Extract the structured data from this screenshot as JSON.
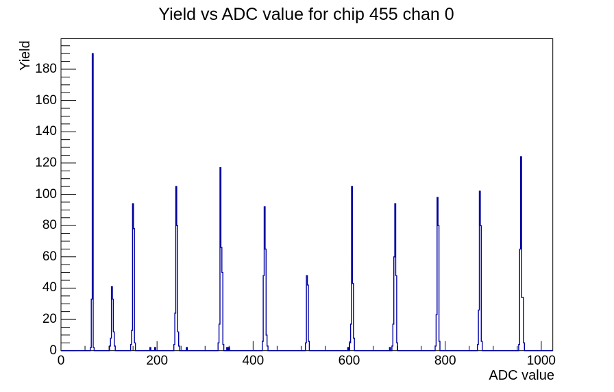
{
  "page": {
    "background": "#ffffff"
  },
  "chart_data": {
    "type": "bar",
    "subtype": "histogram-step-outline",
    "title": "Yield vs ADC value for chip 455 chan 0",
    "xlabel": "ADC value",
    "ylabel": "Yield",
    "xlim": [
      0,
      1024
    ],
    "ylim": [
      0,
      199.5
    ],
    "x_major_ticks": [
      0,
      200,
      400,
      600,
      800,
      1000
    ],
    "x_minor_tick_step": 50,
    "y_major_ticks": [
      0,
      20,
      40,
      60,
      80,
      100,
      120,
      140,
      160,
      180
    ],
    "y_minor_tick_step": 5,
    "grid": false,
    "legend": false,
    "line_color": "#0000a0",
    "axis_color": "#000000",
    "bin_width": 2,
    "bins": [
      [
        61,
        2
      ],
      [
        63,
        33
      ],
      [
        65,
        190
      ],
      [
        67,
        2
      ],
      [
        101,
        3
      ],
      [
        103,
        8
      ],
      [
        105,
        41
      ],
      [
        107,
        33
      ],
      [
        109,
        12
      ],
      [
        111,
        3
      ],
      [
        145,
        4
      ],
      [
        147,
        13
      ],
      [
        149,
        94
      ],
      [
        151,
        78
      ],
      [
        153,
        5
      ],
      [
        185,
        2
      ],
      [
        195,
        2
      ],
      [
        235,
        4
      ],
      [
        237,
        24
      ],
      [
        239,
        105
      ],
      [
        241,
        80
      ],
      [
        243,
        12
      ],
      [
        245,
        3
      ],
      [
        261,
        2
      ],
      [
        327,
        5
      ],
      [
        329,
        17
      ],
      [
        331,
        117
      ],
      [
        333,
        66
      ],
      [
        335,
        50
      ],
      [
        337,
        4
      ],
      [
        345,
        2
      ],
      [
        349,
        2
      ],
      [
        419,
        6
      ],
      [
        421,
        48
      ],
      [
        423,
        92
      ],
      [
        425,
        65
      ],
      [
        427,
        10
      ],
      [
        429,
        3
      ],
      [
        509,
        5
      ],
      [
        511,
        48
      ],
      [
        513,
        42
      ],
      [
        515,
        6
      ],
      [
        597,
        2
      ],
      [
        601,
        5
      ],
      [
        603,
        17
      ],
      [
        605,
        105
      ],
      [
        607,
        43
      ],
      [
        609,
        8
      ],
      [
        684,
        2
      ],
      [
        689,
        3
      ],
      [
        691,
        17
      ],
      [
        693,
        60
      ],
      [
        695,
        94
      ],
      [
        697,
        48
      ],
      [
        699,
        5
      ],
      [
        779,
        3
      ],
      [
        781,
        23
      ],
      [
        783,
        98
      ],
      [
        785,
        80
      ],
      [
        787,
        6
      ],
      [
        867,
        4
      ],
      [
        869,
        26
      ],
      [
        871,
        102
      ],
      [
        873,
        80
      ],
      [
        875,
        6
      ],
      [
        953,
        4
      ],
      [
        955,
        65
      ],
      [
        957,
        124
      ],
      [
        959,
        34
      ],
      [
        961,
        34
      ],
      [
        963,
        5
      ]
    ]
  }
}
